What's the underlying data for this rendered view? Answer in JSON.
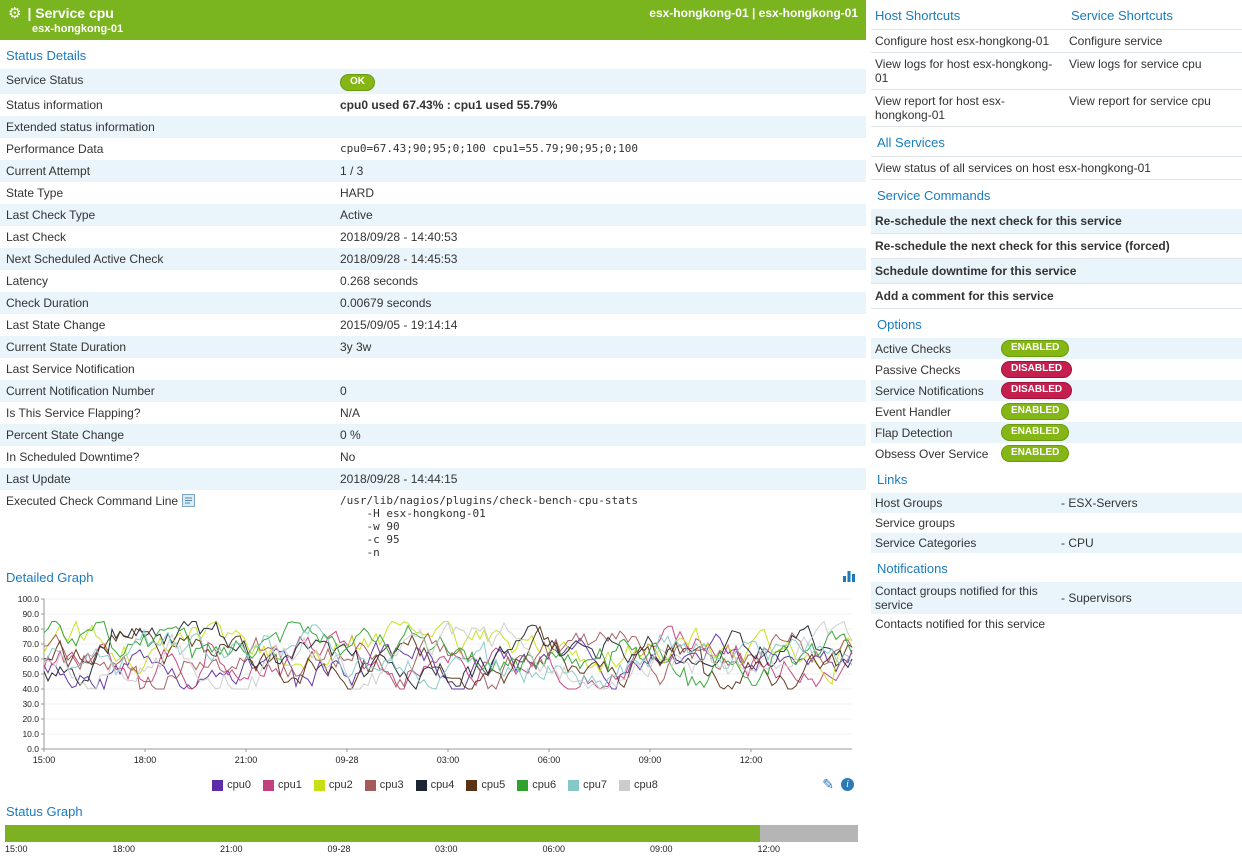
{
  "colors": {
    "header_green": "#7ab41f",
    "ok_green": "#84b715",
    "disabled_red": "#c41f4e",
    "link_blue": "#1a7bbd",
    "row_blue": "#e9f4fb",
    "status_bar_green": "#7db022",
    "status_bar_gray": "#b5b5b5"
  },
  "header": {
    "title": "| Service cpu",
    "subtitle": "esx-hongkong-01",
    "right": "esx-hongkong-01 | esx-hongkong-01"
  },
  "status_details": {
    "title": "Status Details",
    "rows": [
      {
        "label": "Service Status",
        "badge": "OK",
        "badge_color": "green"
      },
      {
        "label": "Status information",
        "value": "cpu0 used 67.43% : cpu1 used 55.79%",
        "bold": true
      },
      {
        "label": "Extended status information",
        "value": ""
      },
      {
        "label": "Performance Data",
        "value": "cpu0=67.43;90;95;0;100 cpu1=55.79;90;95;0;100",
        "mono": true
      },
      {
        "label": "Current Attempt",
        "value": "1 / 3"
      },
      {
        "label": "State Type",
        "value": "HARD"
      },
      {
        "label": "Last Check Type",
        "value": "Active"
      },
      {
        "label": "Last Check",
        "value": "2018/09/28 - 14:40:53"
      },
      {
        "label": "Next Scheduled Active Check",
        "value": "2018/09/28 - 14:45:53"
      },
      {
        "label": "Latency",
        "value": "0.268 seconds"
      },
      {
        "label": "Check Duration",
        "value": "0.00679 seconds"
      },
      {
        "label": "Last State Change",
        "value": "2015/09/05 - 19:14:14"
      },
      {
        "label": "Current State Duration",
        "value": "3y 3w"
      },
      {
        "label": "Last Service Notification",
        "value": ""
      },
      {
        "label": "Current Notification Number",
        "value": "0"
      },
      {
        "label": "Is This Service Flapping?",
        "value": "N/A"
      },
      {
        "label": "Percent State Change",
        "value": "0 %"
      },
      {
        "label": "In Scheduled Downtime?",
        "value": "No"
      },
      {
        "label": "Last Update",
        "value": "2018/09/28 - 14:44:15"
      },
      {
        "label": "Executed Check Command Line",
        "icon": "command-line-icon",
        "mono": true,
        "value": "/usr/lib/nagios/plugins/check-bench-cpu-stats\n    -H esx-hongkong-01\n    -w 90\n    -c 95\n    -n"
      }
    ]
  },
  "sections": {
    "detailed_graph": "Detailed Graph",
    "status_graph": "Status Graph"
  },
  "chart_data": [
    {
      "type": "line",
      "title": "Detailed Graph",
      "ylim": [
        0,
        100
      ],
      "y_ticks": [
        "100.0",
        "90.0",
        "80.0",
        "70.0",
        "60.0",
        "50.0",
        "40.0",
        "30.0",
        "20.0",
        "10.0",
        "0.0"
      ],
      "x_ticks": [
        "15:00",
        "18:00",
        "21:00",
        "09-28",
        "03:00",
        "06:00",
        "09:00",
        "12:00"
      ],
      "series": [
        {
          "name": "cpu0",
          "color": "#5b2da8",
          "approx_mean": 62,
          "approx_range": [
            40,
            85
          ]
        },
        {
          "name": "cpu1",
          "color": "#c2417e",
          "approx_mean": 61,
          "approx_range": [
            40,
            85
          ]
        },
        {
          "name": "cpu2",
          "color": "#c6e015",
          "approx_mean": 62,
          "approx_range": [
            40,
            85
          ]
        },
        {
          "name": "cpu3",
          "color": "#a35b5b",
          "approx_mean": 60,
          "approx_range": [
            40,
            85
          ]
        },
        {
          "name": "cpu4",
          "color": "#1b2430",
          "approx_mean": 62,
          "approx_range": [
            40,
            85
          ]
        },
        {
          "name": "cpu5",
          "color": "#5a3315",
          "approx_mean": 61,
          "approx_range": [
            40,
            85
          ]
        },
        {
          "name": "cpu6",
          "color": "#2fa12f",
          "approx_mean": 62,
          "approx_range": [
            40,
            85
          ]
        },
        {
          "name": "cpu7",
          "color": "#86c7c7",
          "approx_mean": 60,
          "approx_range": [
            40,
            85
          ]
        },
        {
          "name": "cpu8",
          "color": "#cccccc",
          "approx_mean": 61,
          "approx_range": [
            40,
            85
          ]
        }
      ],
      "grid": false,
      "legend_position": "bottom"
    },
    {
      "type": "status-timeline",
      "title": "Status Graph",
      "x_ticks": [
        "15:00",
        "18:00",
        "21:00",
        "09-28",
        "03:00",
        "06:00",
        "09:00",
        "12:00"
      ],
      "segments": [
        {
          "state": "ok",
          "color": "#7db022",
          "fraction": 0.885
        },
        {
          "state": "no-data",
          "color": "#b5b5b5",
          "fraction": 0.115
        }
      ]
    }
  ],
  "shortcuts": {
    "host_header": "Host Shortcuts",
    "service_header": "Service Shortcuts",
    "rows": [
      {
        "host": "Configure host esx-hongkong-01",
        "service": "Configure service"
      },
      {
        "host": "View logs for host esx-hongkong-01",
        "service": "View logs for service cpu"
      },
      {
        "host": "View report for host esx-hongkong-01",
        "service": "View report for service cpu"
      }
    ]
  },
  "all_services": {
    "title": "All Services",
    "link": "View status of all services on host esx-hongkong-01"
  },
  "service_commands": {
    "title": "Service Commands",
    "items": [
      "Re-schedule the next check for this service",
      "Re-schedule the next check for this service (forced)",
      "Schedule downtime for this service",
      "Add a comment for this service"
    ]
  },
  "options": {
    "title": "Options",
    "items": [
      {
        "label": "Active Checks",
        "state": "ENABLED"
      },
      {
        "label": "Passive Checks",
        "state": "DISABLED"
      },
      {
        "label": "Service Notifications",
        "state": "DISABLED"
      },
      {
        "label": "Event Handler",
        "state": "ENABLED"
      },
      {
        "label": "Flap Detection",
        "state": "ENABLED"
      },
      {
        "label": "Obsess Over Service",
        "state": "ENABLED"
      }
    ]
  },
  "links": {
    "title": "Links",
    "items": [
      {
        "label": "Host Groups",
        "value": "- ESX-Servers"
      },
      {
        "label": "Service groups",
        "value": ""
      },
      {
        "label": "Service Categories",
        "value": "- CPU"
      }
    ]
  },
  "notifications": {
    "title": "Notifications",
    "items": [
      {
        "label": "Contact groups notified for this service",
        "value": "- Supervisors"
      },
      {
        "label": "Contacts notified for this service",
        "value": ""
      }
    ]
  }
}
